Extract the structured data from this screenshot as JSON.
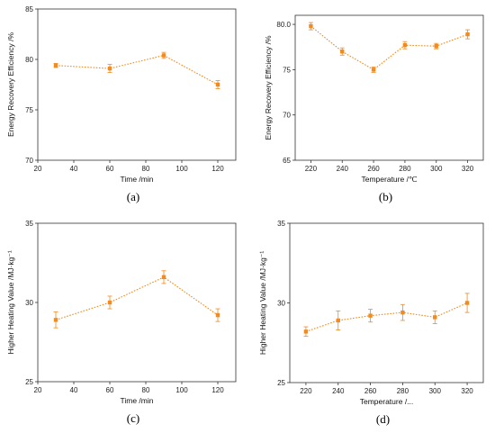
{
  "colors": {
    "series": "#f28a1c",
    "axis": "#333333"
  },
  "chart_data": [
    {
      "type": "line",
      "panel_label": "(a)",
      "x": [
        30,
        60,
        90,
        120
      ],
      "series": [
        {
          "values": [
            79.4,
            79.1,
            80.4,
            77.5
          ],
          "errors": [
            0.2,
            0.4,
            0.3,
            0.4
          ]
        }
      ],
      "xlabel": "Time /min",
      "ylabel": "Energy Recovery Efficiency /%",
      "xlim": [
        20,
        130
      ],
      "ylim": [
        70,
        85
      ],
      "xticks": [
        20,
        40,
        60,
        80,
        100,
        120
      ],
      "yticks": [
        70,
        75,
        80,
        85
      ],
      "ytick_labels": [
        "70",
        "75",
        "80",
        "85"
      ],
      "grid": false,
      "line_style": "dotted",
      "marker": "square"
    },
    {
      "type": "line",
      "panel_label": "(b)",
      "x": [
        220,
        240,
        260,
        280,
        300,
        320
      ],
      "series": [
        {
          "values": [
            79.8,
            77.0,
            75.0,
            77.7,
            77.6,
            78.9
          ],
          "errors": [
            0.4,
            0.4,
            0.3,
            0.4,
            0.3,
            0.5
          ]
        }
      ],
      "xlabel": "Temperature /℃",
      "ylabel": "Energy Recovery Efficiency /%",
      "xlim": [
        210,
        330
      ],
      "ylim": [
        65,
        81
      ],
      "xticks": [
        220,
        240,
        260,
        280,
        300,
        320
      ],
      "yticks": [
        65,
        70,
        75,
        80
      ],
      "ytick_labels": [
        "65",
        "70",
        "75",
        "80.0"
      ],
      "grid": false,
      "line_style": "dotted",
      "marker": "square"
    },
    {
      "type": "line",
      "panel_label": "(c)",
      "x": [
        30,
        60,
        90,
        120
      ],
      "series": [
        {
          "values": [
            28.9,
            30.0,
            31.6,
            29.2
          ],
          "errors": [
            0.5,
            0.4,
            0.4,
            0.4
          ]
        }
      ],
      "xlabel": "Time /min",
      "ylabel": "Higher Heating Value /MJ·kg⁻¹",
      "xlim": [
        20,
        130
      ],
      "ylim": [
        25,
        35
      ],
      "xticks": [
        20,
        40,
        60,
        80,
        100,
        120
      ],
      "yticks": [
        25,
        30,
        35
      ],
      "ytick_labels": [
        "25",
        "30",
        "35"
      ],
      "grid": false,
      "line_style": "dotted",
      "marker": "square"
    },
    {
      "type": "line",
      "panel_label": "(d)",
      "x": [
        220,
        240,
        260,
        280,
        300,
        320
      ],
      "series": [
        {
          "values": [
            28.2,
            28.9,
            29.2,
            29.4,
            29.1,
            30.0
          ],
          "errors": [
            0.3,
            0.6,
            0.4,
            0.5,
            0.4,
            0.6
          ]
        }
      ],
      "xlabel": "Temperature /...",
      "ylabel": "Higher Heating Value /MJ·kg⁻¹",
      "xlim": [
        210,
        330
      ],
      "ylim": [
        25,
        35
      ],
      "xticks": [
        220,
        240,
        260,
        280,
        300,
        320
      ],
      "yticks": [
        25,
        30,
        35
      ],
      "ytick_labels": [
        "25",
        "30",
        "35"
      ],
      "grid": false,
      "line_style": "dotted",
      "marker": "square"
    }
  ]
}
